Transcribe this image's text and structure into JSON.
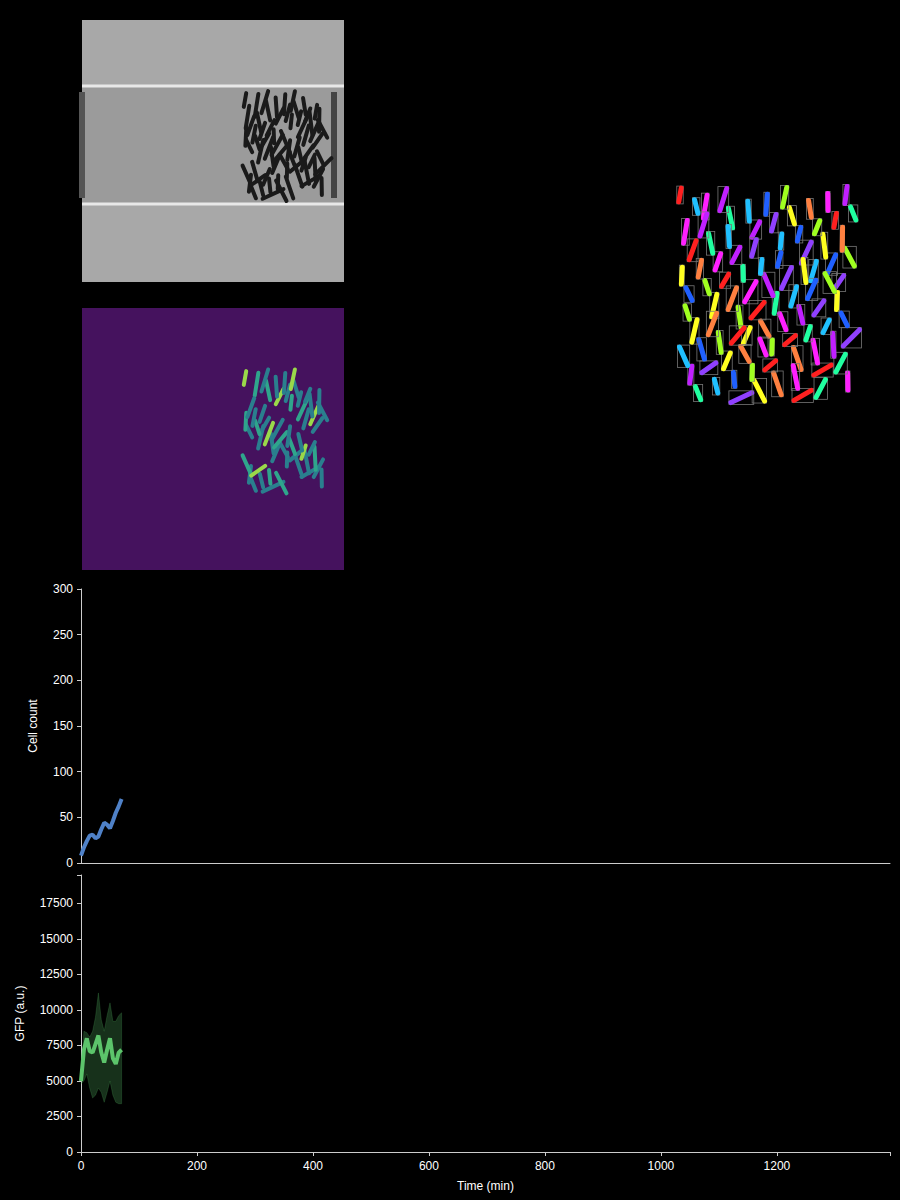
{
  "chart_data": [
    {
      "type": "line",
      "ylabel": "Cell count",
      "x": [
        0,
        5,
        10,
        15,
        20,
        25,
        30,
        35,
        40,
        45,
        50,
        55,
        60,
        65,
        70
      ],
      "values": [
        8,
        17,
        24,
        30,
        31,
        27,
        29,
        37,
        44,
        42,
        38,
        46,
        55,
        62,
        70
      ],
      "color": "#4f81c7",
      "xlim": [
        0,
        1395
      ],
      "ylim": [
        0,
        300
      ],
      "yticks": [
        0,
        50,
        100,
        150,
        200,
        250,
        300
      ],
      "tick_labels": "y",
      "grid": false
    },
    {
      "type": "line",
      "xlabel": "Time (min)",
      "ylabel": "GFP (a.u.)",
      "x": [
        0,
        5,
        10,
        15,
        20,
        25,
        30,
        35,
        40,
        45,
        50,
        55,
        60,
        65,
        70
      ],
      "values": [
        5000,
        7200,
        8000,
        7100,
        7000,
        7600,
        8200,
        7000,
        6300,
        7200,
        8000,
        6600,
        6200,
        7000,
        7200
      ],
      "lower": [
        4800,
        5000,
        5500,
        4500,
        3800,
        4000,
        4500,
        4200,
        3500,
        4200,
        5000,
        4000,
        3500,
        3400,
        3400
      ],
      "upper": [
        5300,
        8500,
        8400,
        8100,
        8500,
        9500,
        11200,
        9300,
        8500,
        9600,
        10500,
        9200,
        9200,
        9600,
        9800
      ],
      "color": "#5cc46b",
      "xlim": [
        0,
        1395
      ],
      "xticks": [
        0,
        200,
        400,
        600,
        800,
        1000,
        1200
      ],
      "ylim": [
        0,
        19500
      ],
      "yticks": [
        0,
        2500,
        5000,
        7500,
        10000,
        12500,
        15000,
        17500
      ],
      "grid": false
    }
  ]
}
